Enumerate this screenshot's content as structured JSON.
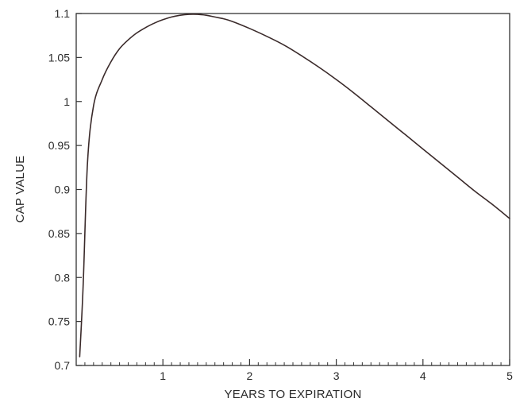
{
  "chart_data": {
    "type": "line",
    "title": "",
    "xlabel": "YEARS TO EXPIRATION",
    "ylabel": "CAP VALUE",
    "xlim": [
      0,
      5
    ],
    "ylim": [
      0.7,
      1.1
    ],
    "grid": false,
    "x_ticks": [
      1,
      2,
      3,
      4,
      5
    ],
    "x_tick_labels": [
      "1",
      "2",
      "3",
      "4",
      "5"
    ],
    "x_minor_tick_step": 0.1,
    "y_ticks": [
      0.7,
      0.75,
      0.8,
      0.85,
      0.9,
      0.95,
      1.0,
      1.05,
      1.1
    ],
    "y_tick_labels": [
      "0.7",
      "0.75",
      "0.8",
      "0.85",
      "0.9",
      "0.95",
      "1",
      "1.05",
      "1.1"
    ],
    "line_color": "#3a2a2a",
    "series": [
      {
        "x": [
          0.04,
          0.08,
          0.13,
          0.2,
          0.3,
          0.4,
          0.5,
          0.6,
          0.7,
          0.8,
          0.9,
          1.0,
          1.1,
          1.2,
          1.3,
          1.4,
          1.5,
          1.6,
          1.7,
          1.8,
          2.0,
          2.2,
          2.4,
          2.6,
          2.8,
          3.0,
          3.2,
          3.4,
          3.6,
          3.8,
          4.0,
          4.2,
          4.4,
          4.6,
          4.8,
          5.0
        ],
        "y": [
          0.71,
          0.79,
          0.93,
          0.995,
          1.025,
          1.045,
          1.06,
          1.07,
          1.078,
          1.084,
          1.089,
          1.093,
          1.096,
          1.098,
          1.099,
          1.099,
          1.098,
          1.096,
          1.094,
          1.091,
          1.083,
          1.074,
          1.064,
          1.052,
          1.039,
          1.025,
          1.01,
          0.994,
          0.978,
          0.962,
          0.946,
          0.93,
          0.914,
          0.898,
          0.883,
          0.867
        ]
      }
    ]
  }
}
